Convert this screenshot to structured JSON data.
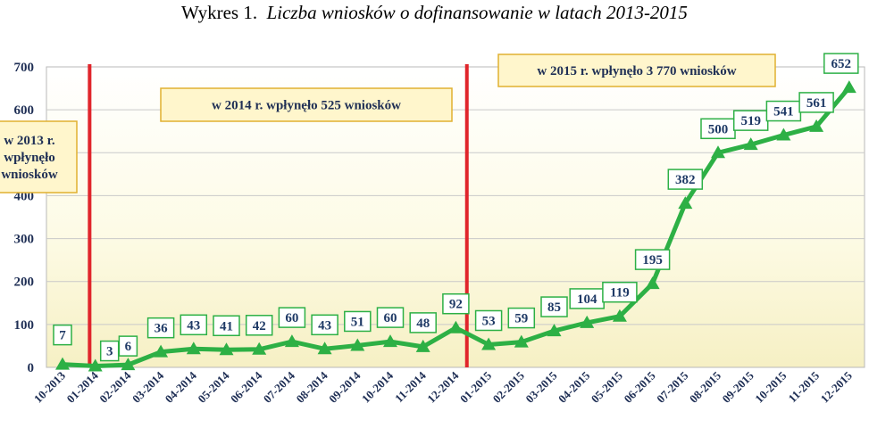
{
  "title": {
    "prefix": "Wykres 1.",
    "main": "Liczba wniosków o dofinansowanie w latach 2013-2015"
  },
  "chart_data": {
    "type": "line",
    "categories": [
      "10-2013",
      "01-2014",
      "02-2014",
      "03-2014",
      "04-2014",
      "05-2014",
      "06-2014",
      "07-2014",
      "08-2014",
      "09-2014",
      "10-2014",
      "11-2014",
      "12-2014",
      "01-2015",
      "02-2015",
      "03-2015",
      "04-2015",
      "05-2015",
      "06-2015",
      "07-2015",
      "08-2015",
      "09-2015",
      "10-2015",
      "11-2015",
      "12-2015"
    ],
    "values": [
      7,
      3,
      6,
      36,
      43,
      41,
      42,
      60,
      43,
      51,
      60,
      48,
      92,
      53,
      59,
      85,
      104,
      119,
      195,
      382,
      500,
      519,
      541,
      561,
      652
    ],
    "ylim": [
      0,
      700
    ],
    "yticks": [
      0,
      100,
      200,
      300,
      400,
      500,
      600,
      700
    ],
    "grid": true,
    "marker": "triangle",
    "colors": {
      "line": "#2db045",
      "label_border": "#2db045",
      "label_text": "#1f3a66",
      "divider": "#e0252b",
      "annotation_border": "#e0b030",
      "annotation_fill": "#fff6cc"
    },
    "dividers_after_index": [
      0,
      12
    ],
    "annotations": [
      {
        "lines": [
          "w 2013 r.",
          "wpłynęło",
          "wniosków"
        ]
      },
      {
        "lines": [
          "w 2014 r. wpłynęło 525 wniosków"
        ]
      },
      {
        "lines": [
          "w 2015 r. wpłynęło 3 770 wniosków"
        ]
      }
    ]
  }
}
